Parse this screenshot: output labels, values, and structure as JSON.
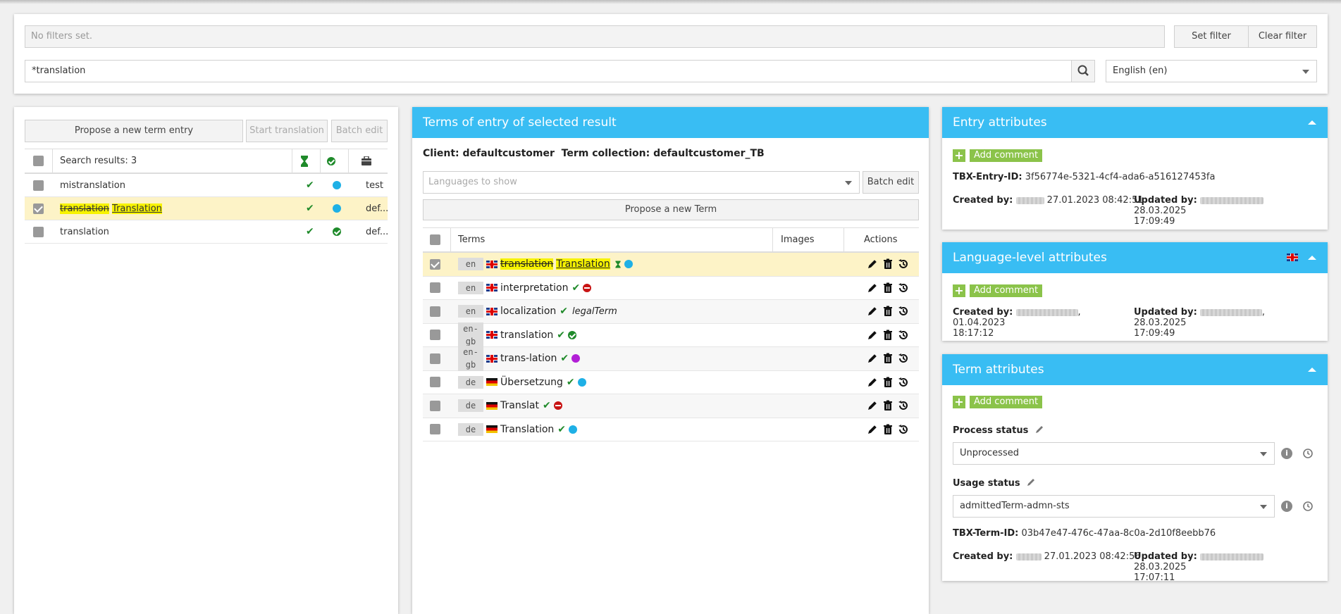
{
  "filter": {
    "placeholder": "No filters set.",
    "set_label": "Set filter",
    "clear_label": "Clear filter",
    "search_value": "*translation",
    "language": "English (en)"
  },
  "left": {
    "propose_label": "Propose a new term entry",
    "start_translation_label": "Start translation",
    "batch_edit_label": "Batch edit",
    "results_label": "Search results: 3",
    "rows": [
      {
        "name": "mistranslation",
        "status": "blue",
        "collection": "test"
      },
      {
        "name_strike": "translation",
        "name_uline": "Translation",
        "status": "blue",
        "collection": "def..."
      },
      {
        "name": "translation",
        "status": "green",
        "collection": "def..."
      }
    ]
  },
  "mid": {
    "title": "Terms of entry of selected result",
    "client_line": "Client: defaultcustomer  Term collection: defaultcustomer_TB",
    "languages_placeholder": "Languages to show",
    "batch_edit_label": "Batch edit",
    "propose_term_label": "Propose a new Term",
    "col_terms": "Terms",
    "col_images": "Images",
    "col_actions": "Actions",
    "terms": [
      {
        "lang": "en",
        "flag": "uk",
        "strike": "translation",
        "uline": "Translation"
      },
      {
        "lang": "en",
        "flag": "uk",
        "text": "interpretation",
        "status": "red"
      },
      {
        "lang": "en",
        "flag": "uk",
        "text": "localization",
        "extra": "legalTerm"
      },
      {
        "lang": "en-gb",
        "flag": "uk",
        "text": "translation",
        "status": "green"
      },
      {
        "lang": "en-gb",
        "flag": "uk",
        "text": "trans-lation",
        "status": "purple"
      },
      {
        "lang": "de",
        "flag": "de",
        "text": "Übersetzung",
        "status": "blue"
      },
      {
        "lang": "de",
        "flag": "de",
        "text": "Translat",
        "status": "red"
      },
      {
        "lang": "de",
        "flag": "de",
        "text": "Translation",
        "status": "blue"
      }
    ]
  },
  "entry": {
    "title": "Entry attributes",
    "add_comment": "Add comment",
    "id_label": "TBX-Entry-ID:",
    "id_value": "3f56774e-5321-4cf4-ada6-a516127453fa",
    "created_label": "Created by:",
    "created_value": "27.01.2023 08:42:51",
    "updated_label": "Updated by:",
    "updated_value": "28.03.2025",
    "updated_time": "17:09:49"
  },
  "language_level": {
    "title": "Language-level attributes",
    "add_comment": "Add comment",
    "created_label": "Created by:",
    "created_value": ", 01.04.2023",
    "created_time": "18:17:12",
    "updated_label": "Updated by:",
    "updated_value": ", 28.03.2025",
    "updated_time": "17:09:49"
  },
  "term_attr": {
    "title": "Term attributes",
    "add_comment": "Add comment",
    "process_label": "Process status",
    "process_value": "Unprocessed",
    "usage_label": "Usage status",
    "usage_value": "admittedTerm-admn-sts",
    "id_label": "TBX-Term-ID:",
    "id_value": "03b47e47-476c-47aa-8c0a-2d10f8eebb76",
    "created_label": "Created by:",
    "created_value": "27.01.2023 08:42:56",
    "updated_label": "Updated by:",
    "updated_value": "28.03.2025",
    "updated_time": "17:07:11"
  },
  "colors": {
    "accent": "#39bdf3",
    "highlight": "#f7f300",
    "selected_row": "#fdf3c7",
    "comment_green": "#8bc34a"
  }
}
